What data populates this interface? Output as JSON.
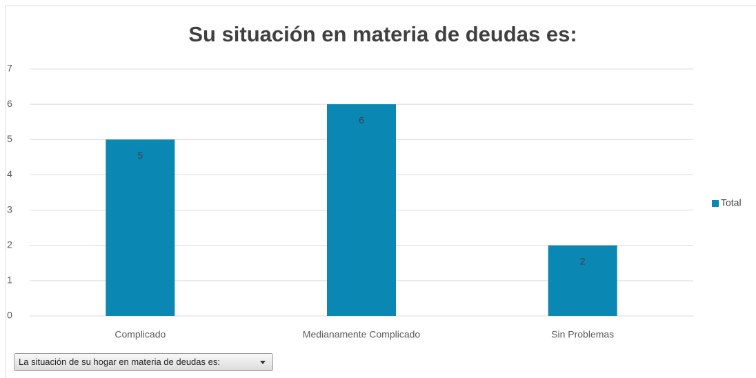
{
  "chart_data": {
    "type": "bar",
    "title": "Su situación en materia de deudas es:",
    "categories": [
      "Complicado",
      "Medianamente Complicado",
      "Sin Problemas"
    ],
    "series": [
      {
        "name": "Total",
        "color": "#0b87b3",
        "values": [
          5,
          6,
          2
        ]
      }
    ],
    "ylim": [
      0,
      7
    ],
    "yticks": [
      0,
      1,
      2,
      3,
      4,
      5,
      6,
      7
    ],
    "grid": true,
    "legend": "right"
  },
  "filter": {
    "label": "La situación de su hogar en materia de deudas es:"
  }
}
